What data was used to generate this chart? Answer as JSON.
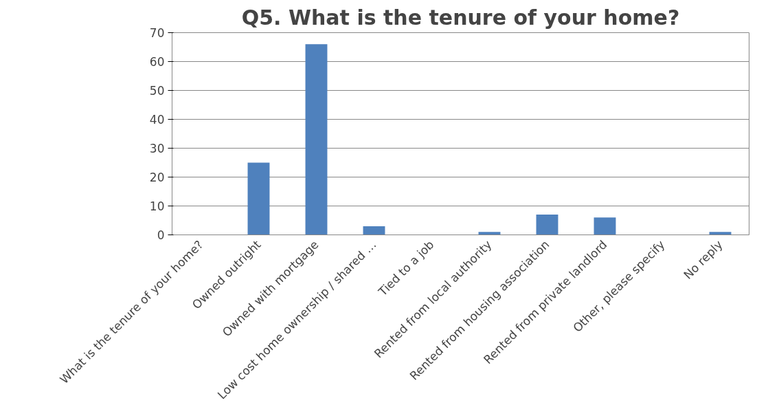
{
  "chart_data": {
    "type": "bar",
    "title": "Q5. What is the tenure of your home?",
    "categories": [
      "What is the tenure of your home?",
      "Owned outright",
      "Owned with mortgage",
      "Low cost home ownership / shared …",
      "Tied to a job",
      "Rented from local authority",
      "Rented from housing association",
      "Rented from private landlord",
      "Other, please specify",
      "No reply"
    ],
    "values": [
      0,
      25,
      66,
      3,
      0,
      1,
      7,
      6,
      0,
      1
    ],
    "color": "#4f81bd",
    "ylim": [
      0,
      70
    ],
    "yticks": [
      0,
      10,
      20,
      30,
      40,
      50,
      60,
      70
    ],
    "grid": "y"
  }
}
